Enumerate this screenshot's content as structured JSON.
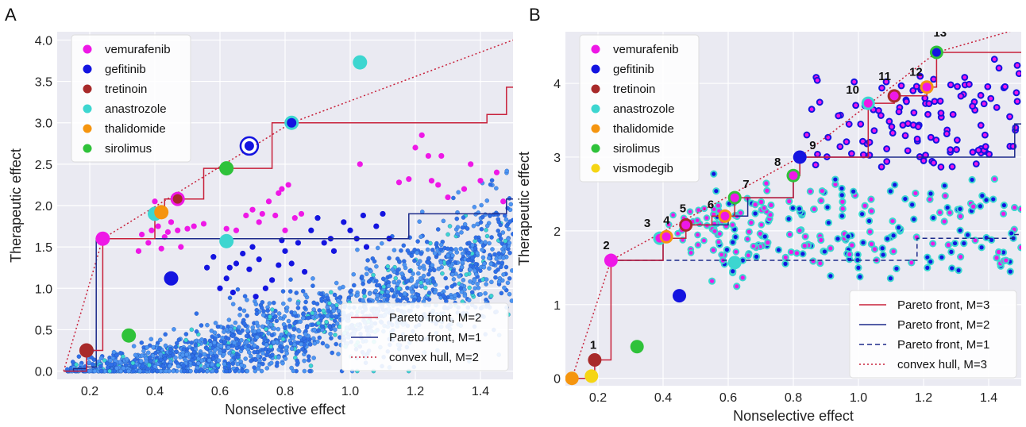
{
  "figure": {
    "panels": [
      "A",
      "B"
    ]
  },
  "colors": {
    "vemurafenib": "#ee18e6",
    "gefitinib": "#1414e0",
    "tretinoin": "#a82a2a",
    "anastrozole": "#3dd6d0",
    "thalidomide": "#f5950f",
    "sirolimus": "#2fc23a",
    "vismodegib": "#f5d514",
    "background_cloud": "#3b82f0",
    "pareto_red": "#c8203a",
    "pareto_blue": "#1c2a8a",
    "panel_bg": "#eaeaf2"
  },
  "chart_data": [
    {
      "type": "scatter",
      "panel": "A",
      "xlabel": "Nonselective effect",
      "ylabel": "Therapeutic effect",
      "xlim": [
        0.1,
        1.5
      ],
      "ylim": [
        -0.1,
        4.1
      ],
      "xticks": [
        "0.2",
        "0.4",
        "0.6",
        "0.8",
        "1.0",
        "1.2",
        "1.4"
      ],
      "xtick_values": [
        0.2,
        0.4,
        0.6,
        0.8,
        1.0,
        1.2,
        1.4
      ],
      "yticks": [
        "0.0",
        "0.5",
        "1.0",
        "1.5",
        "2.0",
        "2.5",
        "3.0",
        "3.5",
        "4.0"
      ],
      "ytick_values": [
        0.0,
        0.5,
        1.0,
        1.5,
        2.0,
        2.5,
        3.0,
        3.5,
        4.0
      ],
      "grid": true,
      "legend_drugs": [
        "vemurafenib",
        "gefitinib",
        "tretinoin",
        "anastrozole",
        "thalidomide",
        "sirolimus"
      ],
      "legend_lines": [
        "Pareto front, M=2",
        "Pareto front, M=1",
        "convex hull, M=2"
      ],
      "legend_drugs_placement": "top-left",
      "legend_lines_placement": "bottom-right",
      "pareto_m2": [
        [
          0.12,
          0.0
        ],
        [
          0.19,
          0.0
        ],
        [
          0.19,
          0.25
        ],
        [
          0.24,
          0.25
        ],
        [
          0.24,
          1.6
        ],
        [
          0.4,
          1.6
        ],
        [
          0.4,
          1.9
        ],
        [
          0.43,
          1.9
        ],
        [
          0.43,
          2.08
        ],
        [
          0.47,
          2.08
        ],
        [
          0.47,
          2.08
        ],
        [
          0.55,
          2.08
        ],
        [
          0.55,
          2.45
        ],
        [
          0.62,
          2.45
        ],
        [
          0.62,
          2.45
        ],
        [
          0.76,
          2.45
        ],
        [
          0.76,
          3.0
        ],
        [
          0.82,
          3.0
        ],
        [
          0.82,
          3.0
        ],
        [
          1.42,
          3.0
        ],
        [
          1.42,
          3.1
        ],
        [
          1.48,
          3.1
        ],
        [
          1.48,
          3.43
        ],
        [
          1.5,
          3.43
        ]
      ],
      "pareto_m1": [
        [
          0.12,
          0.0
        ],
        [
          0.15,
          0.0
        ],
        [
          0.15,
          0.03
        ],
        [
          0.19,
          0.03
        ],
        [
          0.19,
          0.05
        ],
        [
          0.22,
          0.05
        ],
        [
          0.22,
          1.6
        ],
        [
          1.18,
          1.6
        ],
        [
          1.18,
          1.9
        ],
        [
          1.48,
          1.9
        ],
        [
          1.48,
          2.08
        ],
        [
          1.5,
          2.08
        ]
      ],
      "hull_m2": [
        [
          0.12,
          0.0
        ],
        [
          0.24,
          1.6
        ],
        [
          0.82,
          3.0
        ],
        [
          1.5,
          4.0
        ]
      ],
      "highlighted": [
        {
          "drug": "gefitinib",
          "x": 0.82,
          "y": 3.0,
          "ring": "anastrozole"
        },
        {
          "drug": "anastrozole",
          "x": 1.03,
          "y": 3.73,
          "ring": "anastrozole"
        },
        {
          "drug": "gefitinib",
          "x": 0.69,
          "y": 2.72,
          "ring": "white"
        },
        {
          "drug": "tretinoin",
          "x": 0.47,
          "y": 2.08,
          "ring": "vemurafenib"
        },
        {
          "drug": "anastrozole",
          "x": 0.4,
          "y": 1.9,
          "ring": "anastrozole"
        },
        {
          "drug": "thalidomide",
          "x": 0.42,
          "y": 1.92,
          "ring": "thalidomide"
        },
        {
          "drug": "sirolimus",
          "x": 0.62,
          "y": 2.45,
          "ring": "sirolimus"
        },
        {
          "drug": "vemurafenib",
          "x": 0.24,
          "y": 1.6,
          "ring": "vemurafenib"
        },
        {
          "drug": "tretinoin",
          "x": 0.19,
          "y": 0.25,
          "ring": "tretinoin"
        },
        {
          "drug": "anastrozole",
          "x": 0.62,
          "y": 1.57,
          "ring": "anastrozole"
        },
        {
          "drug": "gefitinib",
          "x": 0.45,
          "y": 1.12,
          "ring": "gefitinib"
        },
        {
          "drug": "sirolimus",
          "x": 0.32,
          "y": 0.43,
          "ring": "sirolimus"
        }
      ],
      "vemurafenib_points": [
        [
          0.41,
          1.75
        ],
        [
          0.43,
          1.62
        ],
        [
          0.45,
          1.8
        ],
        [
          0.38,
          1.55
        ],
        [
          0.35,
          1.45
        ],
        [
          0.44,
          1.68
        ],
        [
          0.47,
          1.7
        ],
        [
          0.5,
          1.72
        ],
        [
          0.52,
          1.75
        ],
        [
          0.55,
          1.78
        ],
        [
          0.36,
          1.65
        ],
        [
          0.48,
          1.5
        ],
        [
          0.42,
          1.48
        ],
        [
          0.39,
          1.7
        ],
        [
          0.4,
          2.05
        ],
        [
          0.68,
          1.88
        ],
        [
          0.7,
          1.95
        ],
        [
          0.72,
          1.8
        ],
        [
          0.75,
          2.05
        ],
        [
          0.78,
          2.15
        ],
        [
          0.8,
          1.7
        ],
        [
          0.83,
          1.85
        ],
        [
          0.85,
          1.9
        ],
        [
          0.77,
          1.88
        ],
        [
          0.73,
          1.9
        ],
        [
          0.65,
          1.7
        ],
        [
          0.79,
          2.2
        ],
        [
          0.81,
          2.25
        ],
        [
          0.62,
          1.72
        ],
        [
          1.2,
          2.7
        ],
        [
          1.22,
          2.85
        ],
        [
          1.24,
          2.6
        ],
        [
          1.18,
          2.32
        ],
        [
          1.3,
          2.1
        ],
        [
          1.35,
          2.2
        ],
        [
          1.4,
          2.3
        ],
        [
          1.45,
          2.4
        ],
        [
          1.27,
          2.25
        ],
        [
          1.15,
          2.28
        ],
        [
          1.03,
          2.5
        ],
        [
          1.28,
          2.6
        ],
        [
          1.37,
          2.5
        ],
        [
          1.47,
          2.05
        ],
        [
          1.25,
          2.3
        ]
      ],
      "gefitinib_points": [
        [
          0.6,
          1.0
        ],
        [
          0.62,
          1.12
        ],
        [
          0.63,
          1.25
        ],
        [
          0.65,
          1.3
        ],
        [
          0.67,
          1.42
        ],
        [
          0.7,
          1.5
        ],
        [
          0.72,
          1.35
        ],
        [
          0.74,
          1.0
        ],
        [
          0.76,
          1.1
        ],
        [
          0.78,
          1.28
        ],
        [
          0.8,
          1.45
        ],
        [
          0.82,
          1.3
        ],
        [
          0.84,
          1.55
        ],
        [
          0.86,
          1.2
        ],
        [
          0.88,
          1.7
        ],
        [
          0.9,
          1.85
        ],
        [
          0.92,
          1.55
        ],
        [
          0.95,
          1.45
        ],
        [
          0.98,
          1.8
        ],
        [
          1.0,
          1.7
        ],
        [
          1.02,
          1.6
        ],
        [
          1.05,
          1.5
        ],
        [
          1.08,
          1.75
        ],
        [
          1.1,
          1.9
        ],
        [
          1.12,
          1.6
        ],
        [
          0.64,
          0.95
        ],
        [
          0.71,
          0.9
        ],
        [
          0.69,
          1.23
        ],
        [
          0.79,
          1.58
        ],
        [
          1.04,
          1.88
        ],
        [
          0.94,
          1.6
        ],
        [
          0.58,
          1.38
        ],
        [
          0.56,
          1.25
        ]
      ],
      "cloud_seed": 1234,
      "cloud_count": 1900
    },
    {
      "type": "scatter",
      "panel": "B",
      "xlabel": "Nonselective effect",
      "ylabel": "Therapeutic effect",
      "xlim": [
        0.1,
        1.5
      ],
      "ylim": [
        -0.1,
        4.7
      ],
      "xticks": [
        "0.2",
        "0.4",
        "0.6",
        "0.8",
        "1.0",
        "1.2",
        "1.4"
      ],
      "xtick_values": [
        0.2,
        0.4,
        0.6,
        0.8,
        1.0,
        1.2,
        1.4
      ],
      "yticks": [
        "0",
        "1",
        "2",
        "3",
        "4"
      ],
      "ytick_values": [
        0,
        1,
        2,
        3,
        4
      ],
      "grid": true,
      "legend_drugs": [
        "vemurafenib",
        "gefitinib",
        "tretinoin",
        "anastrozole",
        "thalidomide",
        "sirolimus",
        "vismodegib"
      ],
      "legend_lines": [
        "Pareto front, M=3",
        "Pareto front, M=2",
        "Pareto front, M=1",
        "convex hull, M=3"
      ],
      "legend_drugs_placement": "top-left",
      "legend_lines_placement": "bottom-right",
      "pareto_m3": [
        [
          0.12,
          0.0
        ],
        [
          0.19,
          0.0
        ],
        [
          0.19,
          0.25
        ],
        [
          0.24,
          0.25
        ],
        [
          0.24,
          1.6
        ],
        [
          0.4,
          1.6
        ],
        [
          0.4,
          1.9
        ],
        [
          0.47,
          1.9
        ],
        [
          0.47,
          2.08
        ],
        [
          0.55,
          2.08
        ],
        [
          0.55,
          2.2
        ],
        [
          0.62,
          2.2
        ],
        [
          0.62,
          2.45
        ],
        [
          0.8,
          2.45
        ],
        [
          0.8,
          2.75
        ],
        [
          0.82,
          2.75
        ],
        [
          0.82,
          3.0
        ],
        [
          1.03,
          3.0
        ],
        [
          1.03,
          3.73
        ],
        [
          1.11,
          3.73
        ],
        [
          1.11,
          3.83
        ],
        [
          1.21,
          3.83
        ],
        [
          1.21,
          3.95
        ],
        [
          1.24,
          3.95
        ],
        [
          1.24,
          4.42
        ],
        [
          1.5,
          4.42
        ]
      ],
      "pareto_m2": [
        [
          0.24,
          1.6
        ],
        [
          0.4,
          1.6
        ],
        [
          0.4,
          1.9
        ],
        [
          0.47,
          1.9
        ],
        [
          0.47,
          2.08
        ],
        [
          0.6,
          2.08
        ],
        [
          0.6,
          2.2
        ],
        [
          0.66,
          2.2
        ],
        [
          0.66,
          2.45
        ],
        [
          0.8,
          2.45
        ],
        [
          0.8,
          2.75
        ],
        [
          0.82,
          2.75
        ],
        [
          0.82,
          3.0
        ],
        [
          1.48,
          3.0
        ],
        [
          1.48,
          3.45
        ],
        [
          1.5,
          3.45
        ]
      ],
      "pareto_m1": [
        [
          0.24,
          1.6
        ],
        [
          1.18,
          1.6
        ],
        [
          1.18,
          1.9
        ],
        [
          1.48,
          1.9
        ],
        [
          1.48,
          1.95
        ],
        [
          1.5,
          1.95
        ]
      ],
      "hull_m3": [
        [
          0.12,
          0.0
        ],
        [
          0.24,
          1.6
        ],
        [
          0.82,
          3.0
        ],
        [
          1.24,
          4.42
        ],
        [
          1.5,
          4.75
        ]
      ],
      "annotations": [
        {
          "label": "1",
          "x": 0.19,
          "y": 0.25
        },
        {
          "label": "2",
          "x": 0.24,
          "y": 1.6
        },
        {
          "label": "3",
          "x": 0.39,
          "y": 1.9
        },
        {
          "label": "4",
          "x": 0.41,
          "y": 1.92
        },
        {
          "label": "5",
          "x": 0.47,
          "y": 2.08
        },
        {
          "label": "6",
          "x": 0.59,
          "y": 2.2
        },
        {
          "label": "7",
          "x": 0.62,
          "y": 2.45
        },
        {
          "label": "8",
          "x": 0.8,
          "y": 2.75
        },
        {
          "label": "9",
          "x": 0.82,
          "y": 3.0
        },
        {
          "label": "10",
          "x": 1.03,
          "y": 3.73
        },
        {
          "label": "11",
          "x": 1.11,
          "y": 3.83
        },
        {
          "label": "12",
          "x": 1.21,
          "y": 3.95
        },
        {
          "label": "13",
          "x": 1.24,
          "y": 4.42
        }
      ],
      "highlighted": [
        {
          "drug": "thalidomide",
          "x": 0.12,
          "y": 0.0,
          "ring": "thalidomide"
        },
        {
          "drug": "vismodegib",
          "x": 0.18,
          "y": 0.03,
          "ring": "vismodegib"
        },
        {
          "drug": "tretinoin",
          "x": 0.19,
          "y": 0.25,
          "ring": "tretinoin"
        },
        {
          "drug": "vemurafenib",
          "x": 0.24,
          "y": 1.6,
          "ring": "vemurafenib"
        },
        {
          "drug": "vemurafenib",
          "x": 0.39,
          "y": 1.9,
          "ring": "anastrozole"
        },
        {
          "drug": "vemurafenib",
          "x": 0.41,
          "y": 1.92,
          "ring": "thalidomide"
        },
        {
          "drug": "vemurafenib",
          "x": 0.47,
          "y": 2.08,
          "ring": "tretinoin"
        },
        {
          "drug": "vemurafenib",
          "x": 0.59,
          "y": 2.2,
          "ring": "thalidomide"
        },
        {
          "drug": "vemurafenib",
          "x": 0.62,
          "y": 2.45,
          "ring": "sirolimus"
        },
        {
          "drug": "anastrozole",
          "x": 0.62,
          "y": 1.57,
          "ring": "anastrozole"
        },
        {
          "drug": "vemurafenib",
          "x": 0.8,
          "y": 2.75,
          "ring": "sirolimus"
        },
        {
          "drug": "gefitinib",
          "x": 0.82,
          "y": 3.0,
          "ring": "gefitinib"
        },
        {
          "drug": "vemurafenib",
          "x": 1.03,
          "y": 3.73,
          "ring": "anastrozole"
        },
        {
          "drug": "vemurafenib",
          "x": 1.11,
          "y": 3.83,
          "ring": "tretinoin"
        },
        {
          "drug": "vemurafenib",
          "x": 1.21,
          "y": 3.95,
          "ring": "thalidomide"
        },
        {
          "drug": "gefitinib",
          "x": 1.24,
          "y": 4.42,
          "ring": "sirolimus"
        },
        {
          "drug": "gefitinib",
          "x": 0.45,
          "y": 1.12,
          "ring": "gefitinib"
        },
        {
          "drug": "sirolimus",
          "x": 0.32,
          "y": 0.43,
          "ring": "sirolimus"
        }
      ],
      "purple_seed": 77,
      "purple_count": 120,
      "cyan_seed": 99,
      "cyan_count": 200
    }
  ]
}
